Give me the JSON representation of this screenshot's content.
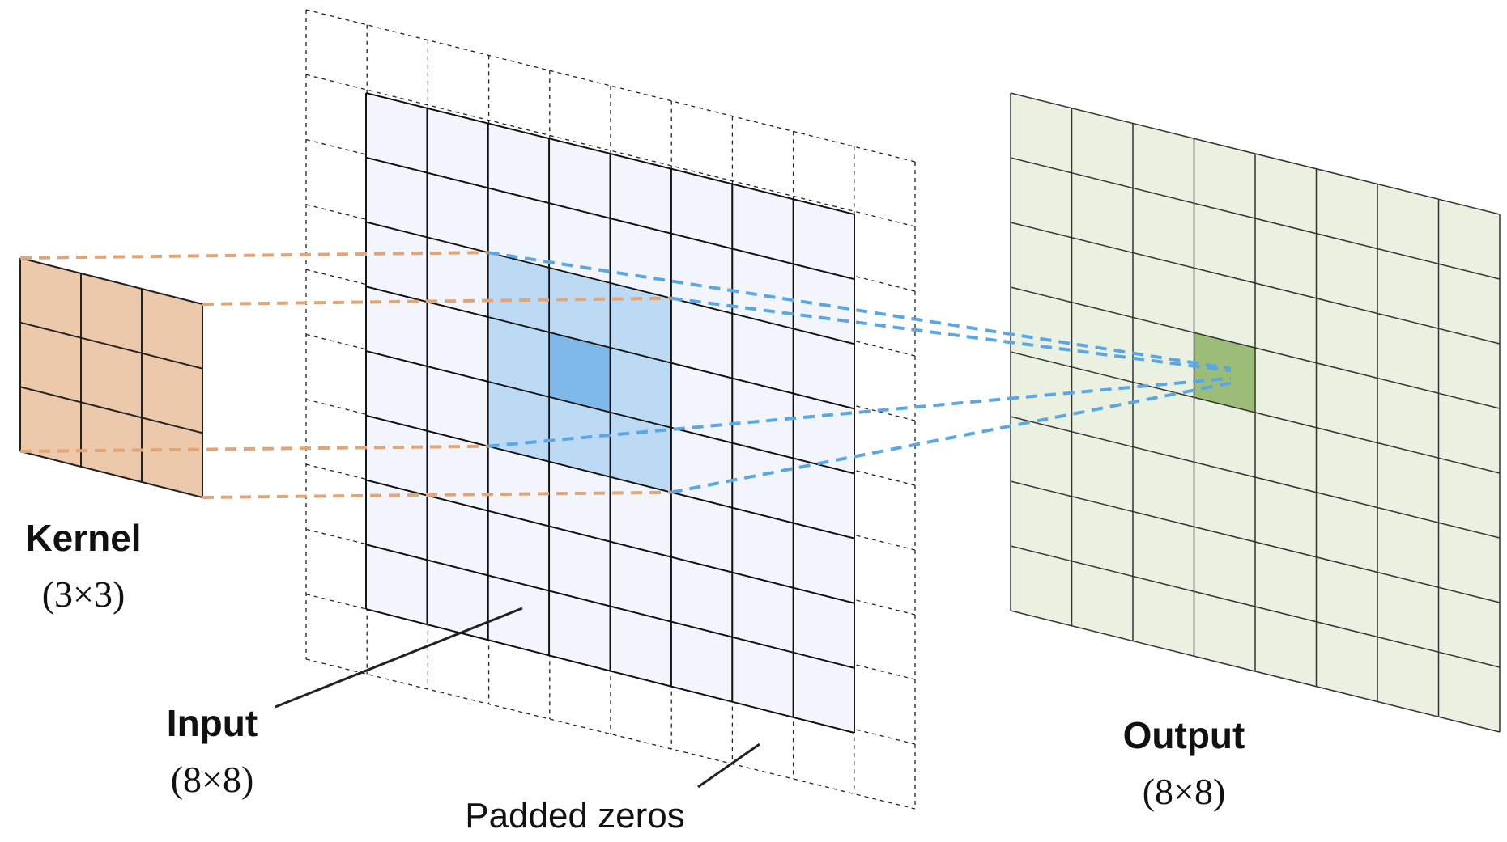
{
  "kernel": {
    "title": "Kernel",
    "dims": "(3×3)",
    "rows": 3,
    "cols": 3
  },
  "input": {
    "title": "Input",
    "dims": "(8×8)",
    "rows": 8,
    "cols": 8,
    "padding": 1,
    "highlight_cell": [
      3,
      3
    ]
  },
  "output": {
    "title": "Output",
    "dims": "(8×8)",
    "rows": 8,
    "cols": 8,
    "highlight_cell": [
      3,
      3
    ]
  },
  "annotation": {
    "padded_zeros": "Padded zeros"
  },
  "colors": {
    "kernel_fill": "#ecc9aa",
    "input_fill": "#f2f5fb",
    "receptive_fill": "#bcdaf3",
    "center_fill": "#7fb9ea",
    "output_fill": "#eaf1e0",
    "output_highlight": "#9cbd77",
    "orange_dash": "#e0a677",
    "blue_dash": "#5aa7e4"
  }
}
